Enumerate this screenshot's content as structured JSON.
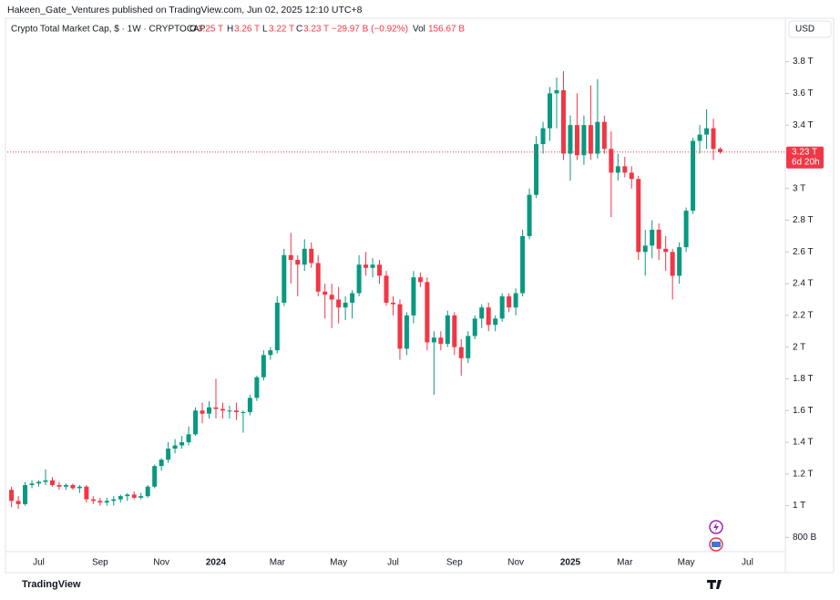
{
  "header": {
    "text": "Hakeen_Gate_Ventures published on TradingView.com, Jun 02, 2025 12:10 UTC+8"
  },
  "legend": {
    "symbol": "Crypto Total Market Cap, $ · 1W · CRYPTOCAP",
    "open_label": "O",
    "open": "3.25 T",
    "high_label": "H",
    "high": "3.26 T",
    "low_label": "L",
    "low": "3.22 T",
    "close_label": "C",
    "close": "3.23 T",
    "change": "−29.97 B (−0.92%)",
    "volume_label": "Vol",
    "volume": "156.67 B"
  },
  "currency": "USD",
  "footer": {
    "brand": "TradingView"
  },
  "chart_data": {
    "type": "candlestick",
    "up_color": "#089981",
    "down_color": "#f23645",
    "last_price": {
      "value": 3.23,
      "label": "3.23 T"
    },
    "countdown": "6d 20h",
    "ylim": [
      0.71,
      3.93
    ],
    "yticks": [
      {
        "value": 0.8,
        "label": "800 B"
      },
      {
        "value": 1,
        "label": "1 T"
      },
      {
        "value": 1.2,
        "label": "1.2 T"
      },
      {
        "value": 1.4,
        "label": "1.4 T"
      },
      {
        "value": 1.6,
        "label": "1.6 T"
      },
      {
        "value": 1.8,
        "label": "1.8 T"
      },
      {
        "value": 2,
        "label": "2 T"
      },
      {
        "value": 2.2,
        "label": "2.2 T"
      },
      {
        "value": 2.4,
        "label": "2.4 T"
      },
      {
        "value": 2.6,
        "label": "2.6 T"
      },
      {
        "value": 2.8,
        "label": "2.8 T"
      },
      {
        "value": 3,
        "label": "3 T"
      },
      {
        "value": 3.4,
        "label": "3.4 T"
      },
      {
        "value": 3.6,
        "label": "3.6 T"
      },
      {
        "value": 3.8,
        "label": "3.8 T"
      }
    ],
    "categories": [
      null,
      null,
      null,
      null,
      "Jul",
      null,
      null,
      null,
      null,
      null,
      null,
      null,
      null,
      "Sep",
      null,
      null,
      null,
      null,
      null,
      null,
      null,
      null,
      "Nov",
      null,
      null,
      null,
      null,
      null,
      null,
      null,
      "2024",
      null,
      null,
      null,
      null,
      null,
      null,
      null,
      null,
      "Mar",
      null,
      null,
      null,
      null,
      null,
      null,
      null,
      null,
      "May",
      null,
      null,
      null,
      null,
      null,
      null,
      null,
      "Jul",
      null,
      null,
      null,
      null,
      null,
      null,
      null,
      null,
      "Sep",
      null,
      null,
      null,
      null,
      null,
      null,
      null,
      null,
      "Nov",
      null,
      null,
      null,
      null,
      null,
      null,
      null,
      "2025",
      null,
      null,
      null,
      null,
      null,
      null,
      null,
      "Mar",
      null,
      null,
      null,
      null,
      null,
      null,
      null,
      null,
      "May",
      null,
      null,
      null,
      null,
      null,
      null,
      null,
      null,
      "Jul"
    ],
    "open": [
      1.1,
      1.03,
      1.01,
      1.13,
      1.14,
      1.15,
      1.16,
      1.13,
      1.12,
      1.13,
      1.11,
      1.12,
      1.04,
      1.03,
      1.02,
      1.03,
      1.04,
      1.06,
      1.07,
      1.05,
      1.06,
      1.12,
      1.25,
      1.29,
      1.36,
      1.38,
      1.4,
      1.45,
      1.6,
      1.58,
      1.62,
      1.61,
      1.6,
      1.6,
      1.59,
      1.59,
      1.68,
      1.81,
      1.95,
      1.98,
      2.28,
      2.58,
      2.55,
      2.52,
      2.62,
      2.53,
      2.35,
      2.33,
      2.3,
      2.25,
      2.28,
      2.34,
      2.52,
      2.5,
      2.52,
      2.45,
      2.28,
      2.27,
      1.99,
      2.2,
      2.44,
      2.41,
      2.03,
      2.06,
      2.02,
      2.2,
      2.0,
      1.93,
      2.07,
      2.18,
      2.25,
      2.14,
      2.18,
      2.32,
      2.25,
      2.34,
      2.7,
      2.96,
      3.28,
      3.38,
      3.6,
      3.62,
      3.22,
      3.4,
      3.21,
      3.4,
      3.22,
      3.42,
      3.25,
      3.1,
      3.14,
      3.1,
      3.06,
      2.6,
      2.64,
      2.74,
      2.62,
      2.6,
      2.45,
      2.63,
      2.86,
      3.3,
      3.34,
      3.38,
      3.25,
      null,
      null,
      null,
      null
    ],
    "high": [
      1.12,
      1.06,
      1.15,
      1.16,
      1.16,
      1.23,
      1.18,
      1.15,
      1.14,
      1.14,
      1.13,
      1.13,
      1.06,
      1.05,
      1.05,
      1.06,
      1.07,
      1.08,
      1.09,
      1.08,
      1.13,
      1.26,
      1.3,
      1.4,
      1.42,
      1.44,
      1.5,
      1.62,
      1.65,
      1.66,
      1.8,
      1.65,
      1.63,
      1.65,
      1.6,
      1.7,
      1.82,
      1.98,
      2.0,
      2.32,
      2.62,
      2.72,
      2.58,
      2.68,
      2.66,
      2.58,
      2.4,
      2.4,
      2.38,
      2.32,
      2.36,
      2.58,
      2.6,
      2.56,
      2.55,
      2.48,
      2.32,
      2.3,
      2.22,
      2.48,
      2.47,
      2.44,
      2.1,
      2.1,
      2.23,
      2.22,
      2.05,
      2.1,
      2.2,
      2.27,
      2.28,
      2.2,
      2.34,
      2.34,
      2.37,
      2.74,
      3.0,
      3.33,
      3.42,
      3.64,
      3.7,
      3.74,
      3.46,
      3.6,
      3.46,
      3.65,
      3.69,
      3.46,
      3.36,
      3.22,
      3.2,
      3.14,
      3.08,
      2.74,
      2.8,
      2.78,
      2.7,
      2.62,
      2.66,
      2.88,
      3.32,
      3.4,
      3.5,
      3.44,
      3.26,
      null,
      null,
      null,
      null
    ],
    "low": [
      0.99,
      0.98,
      1.0,
      1.11,
      1.12,
      1.13,
      1.12,
      1.1,
      1.1,
      1.1,
      1.08,
      1.02,
      1.01,
      1.0,
      1.0,
      1.0,
      1.02,
      1.03,
      1.04,
      1.04,
      1.05,
      1.11,
      1.22,
      1.27,
      1.33,
      1.36,
      1.38,
      1.44,
      1.52,
      1.55,
      1.55,
      1.55,
      1.55,
      1.54,
      1.46,
      1.57,
      1.66,
      1.79,
      1.92,
      1.96,
      2.26,
      2.4,
      2.32,
      2.48,
      2.5,
      2.32,
      2.18,
      2.12,
      2.15,
      2.17,
      2.18,
      2.32,
      2.45,
      2.44,
      2.4,
      2.26,
      2.2,
      1.92,
      1.95,
      2.15,
      2.38,
      1.98,
      1.7,
      1.98,
      2.0,
      1.95,
      1.82,
      1.9,
      2.05,
      2.12,
      2.1,
      2.1,
      2.16,
      2.22,
      2.2,
      2.32,
      2.68,
      2.94,
      3.22,
      3.3,
      3.38,
      3.18,
      3.05,
      3.18,
      3.15,
      3.18,
      3.19,
      3.22,
      2.82,
      3.05,
      3.07,
      3.0,
      2.55,
      2.45,
      2.56,
      2.55,
      2.48,
      2.3,
      2.4,
      2.6,
      2.84,
      3.22,
      3.25,
      3.18,
      3.22,
      null,
      null,
      null,
      null
    ],
    "close": [
      1.03,
      1.01,
      1.13,
      1.14,
      1.15,
      1.16,
      1.13,
      1.12,
      1.13,
      1.11,
      1.12,
      1.04,
      1.03,
      1.02,
      1.03,
      1.04,
      1.06,
      1.07,
      1.05,
      1.06,
      1.12,
      1.25,
      1.29,
      1.36,
      1.38,
      1.4,
      1.45,
      1.6,
      1.58,
      1.62,
      1.61,
      1.6,
      1.6,
      1.59,
      1.59,
      1.68,
      1.81,
      1.95,
      1.98,
      2.28,
      2.58,
      2.55,
      2.52,
      2.62,
      2.53,
      2.35,
      2.33,
      2.3,
      2.25,
      2.28,
      2.34,
      2.52,
      2.5,
      2.52,
      2.45,
      2.28,
      2.27,
      1.99,
      2.2,
      2.44,
      2.41,
      2.03,
      2.06,
      2.02,
      2.2,
      2.0,
      1.93,
      2.07,
      2.18,
      2.25,
      2.14,
      2.18,
      2.32,
      2.25,
      2.34,
      2.7,
      2.96,
      3.28,
      3.38,
      3.6,
      3.62,
      3.22,
      3.4,
      3.21,
      3.4,
      3.22,
      3.42,
      3.25,
      3.1,
      3.14,
      3.1,
      3.06,
      2.6,
      2.64,
      2.74,
      2.62,
      2.6,
      2.45,
      2.63,
      2.86,
      3.3,
      3.34,
      3.38,
      3.25,
      3.23,
      null,
      null,
      null,
      null
    ]
  }
}
